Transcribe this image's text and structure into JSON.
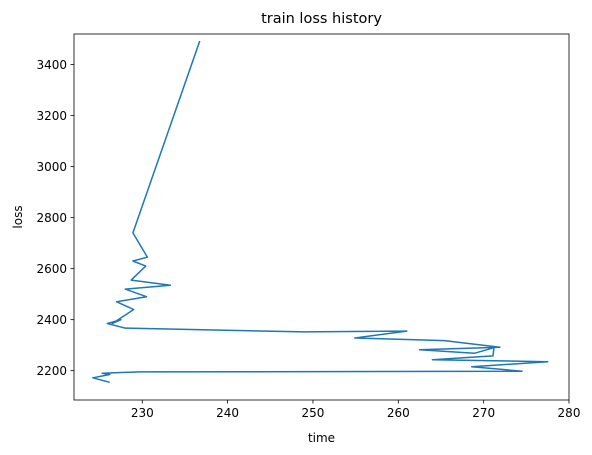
{
  "chart_data": {
    "type": "line",
    "title": "train loss history",
    "xlabel": "time",
    "ylabel": "loss",
    "xlim": [
      222,
      280
    ],
    "ylim": [
      2085,
      3520
    ],
    "xticks": [
      230,
      240,
      250,
      260,
      270,
      280
    ],
    "yticks": [
      2200,
      2400,
      2600,
      2800,
      3000,
      3200,
      3400
    ],
    "grid": false,
    "line_color": "#1f77b4",
    "series": [
      {
        "x": [
          236.7,
          228.9,
          230.6,
          228.9,
          230.4,
          228.7,
          233.3,
          228.0,
          230.5,
          227.0,
          229.0,
          226.5,
          227.5,
          225.9,
          227.4,
          228.0,
          249.0,
          261.0,
          254.9,
          265.4,
          271.9,
          262.5,
          268.9,
          271.2,
          271.1,
          264.0,
          277.5,
          268.6,
          274.5,
          229.6,
          225.3,
          226.2,
          224.2,
          226.1
        ],
        "y": [
          3490,
          2740,
          2645,
          2630,
          2610,
          2555,
          2535,
          2520,
          2490,
          2470,
          2440,
          2385,
          2400,
          2385,
          2372,
          2367,
          2352,
          2355,
          2328,
          2318,
          2292,
          2282,
          2268,
          2290,
          2258,
          2243,
          2235,
          2215,
          2198,
          2195,
          2190,
          2185,
          2172,
          2155
        ]
      }
    ]
  }
}
